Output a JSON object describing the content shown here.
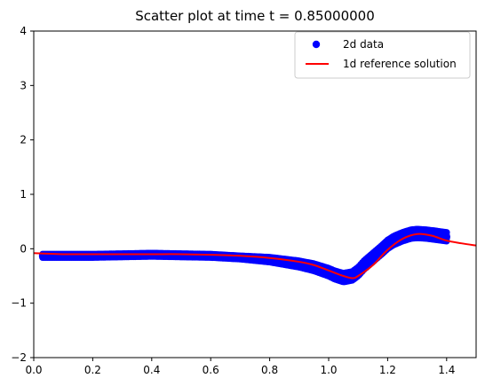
{
  "chart_data": {
    "type": "scatter",
    "title": "Scatter plot at time t =      0.85000000",
    "xlabel": "",
    "ylabel": "",
    "xlim": [
      0.0,
      1.5
    ],
    "ylim": [
      -2,
      4
    ],
    "x_ticks": [
      0.0,
      0.2,
      0.4,
      0.6,
      0.8,
      1.0,
      1.2,
      1.4
    ],
    "x_tick_labels": [
      "0.0",
      "0.2",
      "0.4",
      "0.6",
      "0.8",
      "1.0",
      "1.2",
      "1.4"
    ],
    "y_ticks": [
      -2,
      -1,
      0,
      1,
      2,
      3,
      4
    ],
    "y_tick_labels": [
      "−2",
      "−1",
      "0",
      "1",
      "2",
      "3",
      "4"
    ],
    "grid": false,
    "legend_position": "top-right",
    "series": [
      {
        "name": "2d data",
        "kind": "scatter",
        "color": "#0000ff",
        "x": [
          0.03,
          0.1,
          0.2,
          0.3,
          0.4,
          0.5,
          0.6,
          0.7,
          0.8,
          0.85,
          0.9,
          0.95,
          1.0,
          1.02,
          1.05,
          1.08,
          1.1,
          1.12,
          1.15,
          1.18,
          1.2,
          1.22,
          1.25,
          1.28,
          1.3,
          1.33,
          1.36,
          1.4
        ],
        "y": [
          -0.13,
          -0.13,
          -0.13,
          -0.12,
          -0.11,
          -0.12,
          -0.13,
          -0.16,
          -0.2,
          -0.24,
          -0.28,
          -0.34,
          -0.43,
          -0.48,
          -0.53,
          -0.5,
          -0.42,
          -0.3,
          -0.16,
          -0.02,
          0.08,
          0.15,
          0.22,
          0.27,
          0.28,
          0.27,
          0.25,
          0.22
        ]
      },
      {
        "name": "1d reference solution",
        "kind": "line",
        "color": "#ff0000",
        "x": [
          0.0,
          0.1,
          0.2,
          0.3,
          0.4,
          0.5,
          0.6,
          0.7,
          0.8,
          0.9,
          0.95,
          1.0,
          1.05,
          1.08,
          1.1,
          1.15,
          1.2,
          1.25,
          1.3,
          1.35,
          1.4,
          1.45,
          1.5
        ],
        "y": [
          -0.08,
          -0.1,
          -0.1,
          -0.1,
          -0.1,
          -0.1,
          -0.11,
          -0.13,
          -0.17,
          -0.24,
          -0.3,
          -0.4,
          -0.5,
          -0.54,
          -0.5,
          -0.3,
          -0.02,
          0.18,
          0.27,
          0.24,
          0.15,
          0.1,
          0.06
        ]
      }
    ]
  }
}
